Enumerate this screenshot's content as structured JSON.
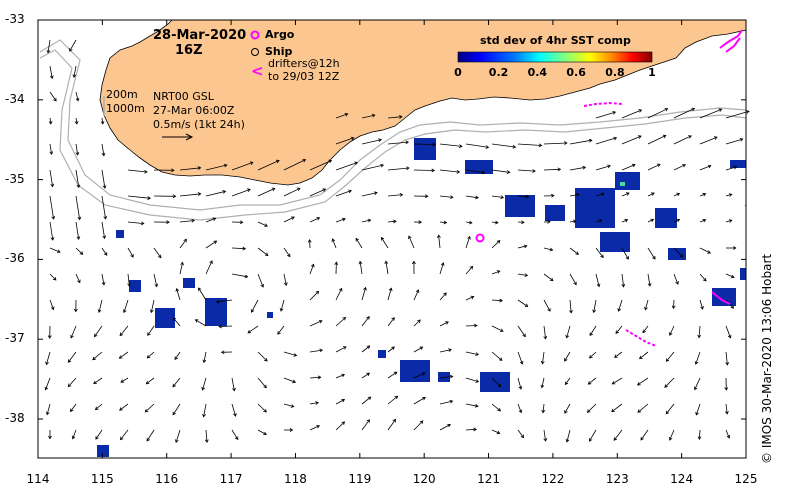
{
  "header": {
    "date": "28-Mar-2020",
    "time": "16Z"
  },
  "legend": {
    "argo_label": "Argo",
    "ship_label": "Ship",
    "drifters_line1": "drifters@12h",
    "drifters_line2": "to 29/03 12Z",
    "drifter_symbol": "<"
  },
  "scale_info": {
    "contour1": "200m",
    "contour2": "1000m",
    "product": "NRT00 GSL",
    "product_time": "27-Mar 06:00Z",
    "speed_scale": "0.5m/s (1kt 24h)"
  },
  "colorbar": {
    "title": "std dev of 4hr SST comp",
    "ticks": [
      "0",
      "0.2",
      "0.4",
      "0.6",
      "0.8",
      "1"
    ],
    "colors": [
      "#000080",
      "#0000ff",
      "#0080ff",
      "#00ffff",
      "#80ff80",
      "#ffff00",
      "#ff8000",
      "#ff0000",
      "#800000"
    ]
  },
  "axes": {
    "lat_ticks": [
      "-33",
      "-34",
      "-35",
      "-36",
      "-37",
      "-38"
    ],
    "lon_ticks": [
      "114",
      "115",
      "116",
      "117",
      "118",
      "119",
      "120",
      "121",
      "122",
      "123",
      "124",
      "125"
    ]
  },
  "credit": "© IMOS 30-Mar-2020 13:06 Hobart",
  "colors": {
    "land": "#fcc690",
    "argo": "#ff00ff",
    "drifters": "#ff00ff",
    "sst_patch": "#0a2aa8",
    "contours": "#b0b0b0"
  }
}
